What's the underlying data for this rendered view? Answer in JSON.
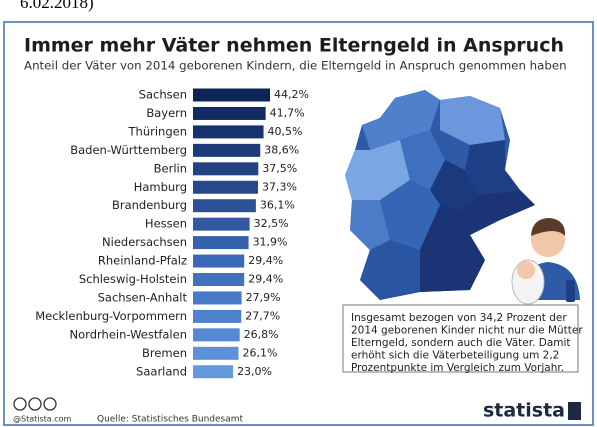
{
  "chart_data": {
    "type": "bar",
    "caption": "6.02.2018)",
    "title": "Immer mehr Väter nehmen Elterngeld in Anspruch",
    "subtitle": "Anteil der Väter von 2014 geborenen Kindern, die Elterngeld in Anspruch genommen haben",
    "categories": [
      "Sachsen",
      "Bayern",
      "Thüringen",
      "Baden-Württemberg",
      "Berlin",
      "Hamburg",
      "Brandenburg",
      "Hessen",
      "Niedersachsen",
      "Rheinland-Pfalz",
      "Schleswig-Holstein",
      "Sachsen-Anhalt",
      "Mecklenburg-Vorpommern",
      "Nordrhein-Westfalen",
      "Bremen",
      "Saarland"
    ],
    "values": [
      44.2,
      41.7,
      40.5,
      38.6,
      37.5,
      37.3,
      36.1,
      32.5,
      31.9,
      29.4,
      29.4,
      27.9,
      27.7,
      26.8,
      26.1,
      23.0
    ],
    "value_labels": [
      "44,2%",
      "41,7%",
      "40,5%",
      "38,6%",
      "37,5%",
      "37,3%",
      "36,1%",
      "32,5%",
      "31,9%",
      "29,4%",
      "29,4%",
      "27,9%",
      "27,7%",
      "26,8%",
      "26,1%",
      "23,0%"
    ],
    "colors": [
      "#0d2456",
      "#122b62",
      "#17326d",
      "#1c3a78",
      "#214283",
      "#26498d",
      "#2b5197",
      "#3159a2",
      "#3661ac",
      "#3c69b5",
      "#4271bd",
      "#4879c5",
      "#4f81cc",
      "#5689d2",
      "#5d91d8",
      "#6499dd"
    ],
    "annotation": [
      "Insgesamt bezogen von 34,2 Prozent der",
      "2014 geborenen Kinder nicht nur die Mütter",
      "Elterngeld, sondern auch die Väter. Damit",
      "erhöht sich die Väterbeteiligung um 2,2",
      "Prozentpunkte im Vergleich zum Vorjahr."
    ],
    "footer_site": "@Statista.com",
    "source": "Quelle: Statistisches Bundesamt",
    "logo": "statista"
  }
}
